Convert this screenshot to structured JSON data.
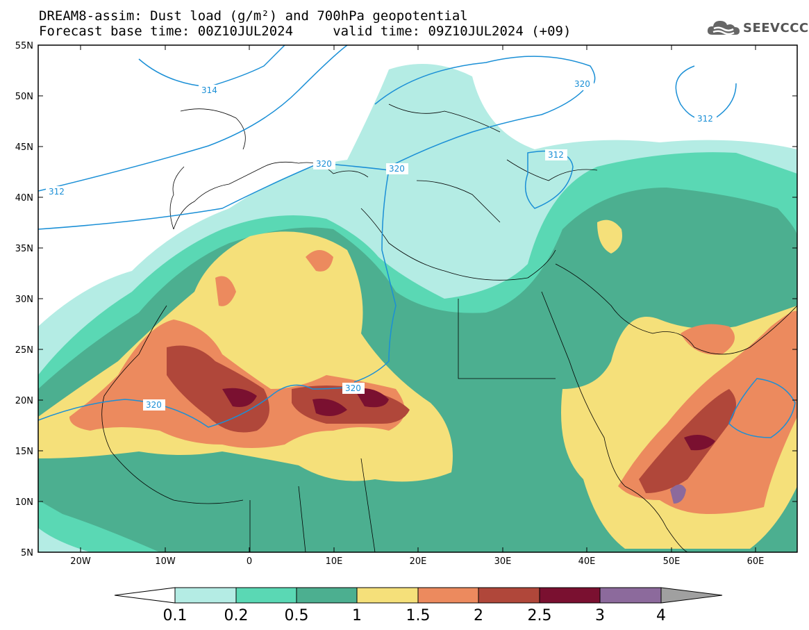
{
  "header": {
    "title_line1": "DREAM8-assim: Dust load (g/m²) and 700hPa geopotential",
    "title_line2": "Forecast base time: 00Z10JUL2024     valid time: 09Z10JUL2024 (+09)"
  },
  "logo": {
    "text": "SEEVCCC",
    "icon": "cloud-icon"
  },
  "map": {
    "lat_labels": [
      "55N",
      "50N",
      "45N",
      "40N",
      "35N",
      "30N",
      "25N",
      "20N",
      "15N",
      "10N",
      "5N"
    ],
    "lon_labels": [
      "20W",
      "10W",
      "0",
      "10E",
      "20E",
      "30E",
      "40E",
      "50E",
      "60E"
    ],
    "contour_labels": [
      "312",
      "314",
      "320",
      "320",
      "320",
      "312",
      "320",
      "320",
      "312"
    ]
  },
  "colorbar": {
    "labels": [
      "0.1",
      "0.2",
      "0.5",
      "1",
      "1.5",
      "2",
      "2.5",
      "3",
      "4"
    ],
    "colors": [
      "#b4ece4",
      "#5ad8b4",
      "#4caf90",
      "#f5e07a",
      "#ec8a5e",
      "#b0473a",
      "#7a1030",
      "#8c6a9c",
      "#a0a0a0"
    ]
  },
  "colors": {
    "contour": "#1a8fd6",
    "border": "#000000",
    "frame": "#000000"
  }
}
